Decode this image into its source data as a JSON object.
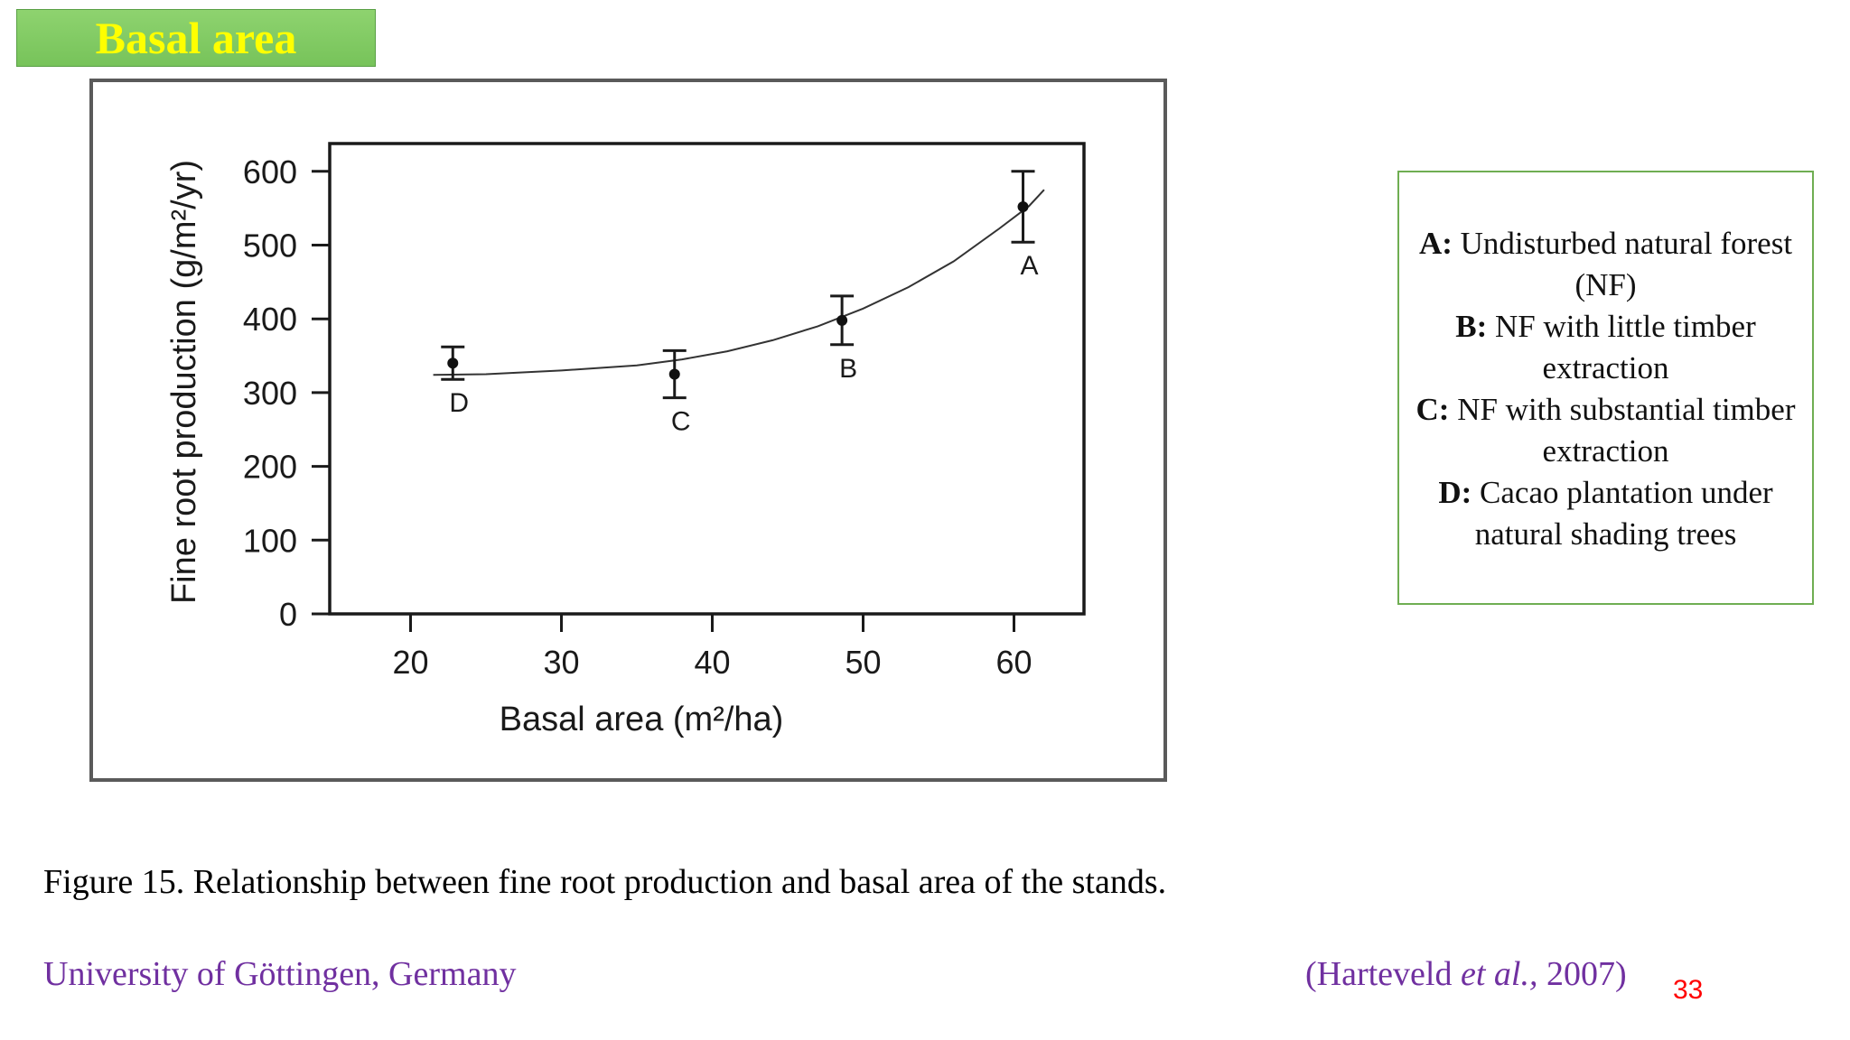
{
  "slide": {
    "title": "Basal area",
    "caption": "Figure 15. Relationship between fine root production and basal area of the stands.",
    "university": "University of Göttingen, Germany",
    "citation": {
      "open": "(Harteveld ",
      "etal": "et al.,",
      "close": " 2007)"
    },
    "slide_number": "33"
  },
  "legend": [
    {
      "key": "A:",
      "text": " Undisturbed natural forest (NF)"
    },
    {
      "key": "B:",
      "text": " NF with little timber extraction"
    },
    {
      "key": "C:",
      "text": " NF with substantial timber extraction"
    },
    {
      "key": "D:",
      "text": " Cacao plantation under natural shading trees"
    }
  ],
  "chart_data": {
    "type": "scatter",
    "xlabel": "Basal area (m²/ha)",
    "ylabel": "Fine root production (g/m²/yr)",
    "xlim": [
      15,
      65
    ],
    "ylim": [
      0,
      600
    ],
    "xticks": [
      20,
      30,
      40,
      50,
      60
    ],
    "yticks": [
      0,
      100,
      200,
      300,
      400,
      500,
      600
    ],
    "grid": false,
    "points": [
      {
        "label": "D",
        "x": 22.8,
        "y": 340,
        "err": 22
      },
      {
        "label": "C",
        "x": 37.5,
        "y": 325,
        "err": 32
      },
      {
        "label": "B",
        "x": 48.6,
        "y": 398,
        "err": 33
      },
      {
        "label": "A",
        "x": 60.6,
        "y": 552,
        "err": 48
      }
    ],
    "fit_curve": {
      "x": [
        21.5,
        25,
        30,
        35,
        38,
        41,
        44,
        47,
        50,
        53,
        56,
        59,
        61,
        62
      ],
      "y": [
        324,
        325,
        330,
        337,
        345,
        356,
        371,
        390,
        414,
        443,
        478,
        522,
        553,
        575
      ]
    }
  }
}
